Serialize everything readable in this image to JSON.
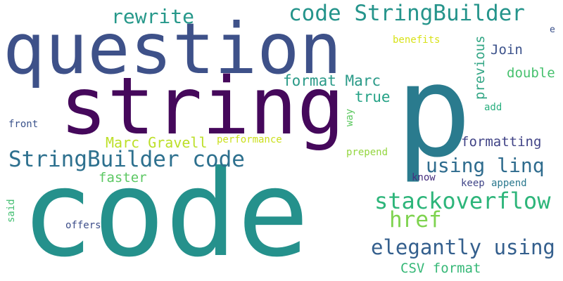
{
  "words": [
    {
      "text": "code",
      "color": "#25918c"
    },
    {
      "text": "question",
      "color": "#3e5189"
    },
    {
      "text": "p",
      "color": "#2a7b8e"
    },
    {
      "text": "string",
      "color": "#45085b"
    },
    {
      "text": "code StringBuilder",
      "color": "#25948b"
    },
    {
      "text": "rewrite",
      "color": "#26988a"
    },
    {
      "text": "StringBuilder code",
      "color": "#2d708e"
    },
    {
      "text": "using linq",
      "color": "#2f6c8e"
    },
    {
      "text": "stackoverflow",
      "color": "#2db57a"
    },
    {
      "text": "elegantly using",
      "color": "#345f8d"
    },
    {
      "text": "href",
      "color": "#7ed34f"
    },
    {
      "text": "format Marc",
      "color": "#2a9a88"
    },
    {
      "text": "Marc Gravell",
      "color": "#bcdf27"
    },
    {
      "text": "Join",
      "color": "#3b518a"
    },
    {
      "text": "double",
      "color": "#47c16e"
    },
    {
      "text": "previous",
      "color": "#33a685"
    },
    {
      "text": "true",
      "color": "#25a286"
    },
    {
      "text": "formatting",
      "color": "#404386"
    },
    {
      "text": "faster",
      "color": "#5cc863"
    },
    {
      "text": "CSV format",
      "color": "#36b877"
    },
    {
      "text": "performance",
      "color": "#cbe01d"
    },
    {
      "text": "benefits",
      "color": "#d8e219"
    },
    {
      "text": "prepend",
      "color": "#94d640"
    },
    {
      "text": "front",
      "color": "#3a528b"
    },
    {
      "text": "said",
      "color": "#42be71"
    },
    {
      "text": "offers",
      "color": "#3d4e8a"
    },
    {
      "text": "know",
      "color": "#462f7e"
    },
    {
      "text": "keep",
      "color": "#404588"
    },
    {
      "text": "append",
      "color": "#2a788e"
    },
    {
      "text": "add",
      "color": "#29af7f"
    },
    {
      "text": "way",
      "color": "#5ec962"
    },
    {
      "text": "e",
      "color": "#3b518b"
    }
  ]
}
